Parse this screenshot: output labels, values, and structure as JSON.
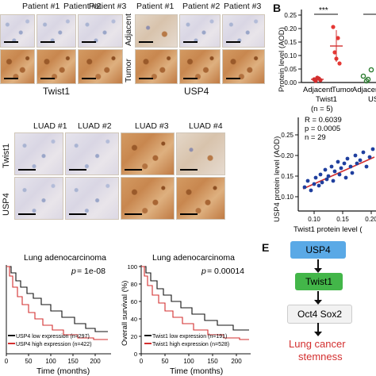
{
  "panel_a": {
    "col_headers_left": [
      "Patient #1",
      "Patient #2",
      "Patient #3"
    ],
    "col_headers_right": [
      "Patient #1",
      "Patient #2",
      "Patient #3"
    ],
    "row_labels": [
      "Adjacent",
      "Tumor"
    ],
    "caption_left": "Twist1",
    "caption_right": "USP4"
  },
  "panel_b": {
    "letter": "B",
    "significance": "***",
    "categories": [
      "Adjacent",
      "Tumor",
      "Adjacent"
    ],
    "group_label": "Twist1",
    "n_label": "(n = 5)",
    "partial_group_label": "US",
    "ylabel": "Protein level (AOD)",
    "y_ticks": [
      "0.00",
      "0.05",
      "0.10",
      "0.15",
      "0.20",
      "0.25"
    ],
    "colors": {
      "adjacent": "#d32f2f",
      "tumor": "#e53935",
      "green": "#2e7d32"
    }
  },
  "panel_c": {
    "col_headers": [
      "LUAD #1",
      "LUAD #2",
      "LUAD #3",
      "LUAD #4"
    ],
    "row_labels": [
      "Twist1",
      "USP4"
    ]
  },
  "panel_d": {
    "stats": [
      "R = 0.6039",
      "p = 0.0005",
      "n = 29"
    ],
    "xlabel": "Twist1 protein level (",
    "ylabel": "USP4 protein level (AOD)",
    "x_ticks": [
      "0.10",
      "0.15",
      "0.20"
    ],
    "y_ticks": [
      "0.10",
      "0.15",
      "0.20",
      "0.25"
    ],
    "colors": {
      "points": "#1f3f9e",
      "fit": "#d32f2f"
    }
  },
  "panel_km_left": {
    "title": "Lung adenocarcinoma",
    "pvalue_label": "p",
    "pvalue": " = 1e-08",
    "legend_low": "USP4 low expression (n=297)",
    "legend_high": "USP4 high expression (n=422)",
    "xlabel": "Time (months)",
    "x_ticks": [
      "0",
      "50",
      "100",
      "150",
      "200"
    ]
  },
  "panel_km_right": {
    "title": "Lung adenocarcinoma",
    "pvalue_label": "p",
    "pvalue": " = 0.00014",
    "legend_low": "Twist1 low expression (n=191)",
    "legend_high": "Twist1 high expression (n=528)",
    "xlabel": "Time (months)",
    "ylabel": "Overall survival (%)",
    "x_ticks": [
      "0",
      "50",
      "100",
      "150",
      "200"
    ],
    "y_ticks": [
      "0",
      "20",
      "40",
      "60",
      "80",
      "100"
    ]
  },
  "panel_e": {
    "letter": "E",
    "nodes": [
      "USP4",
      "Twist1",
      "Oct4 Sox2",
      "Lung cancer",
      "stemness"
    ],
    "colors": {
      "usp4": "#5aa9e6",
      "twist1": "#43b649",
      "outcome": "#d32f2f"
    }
  }
}
